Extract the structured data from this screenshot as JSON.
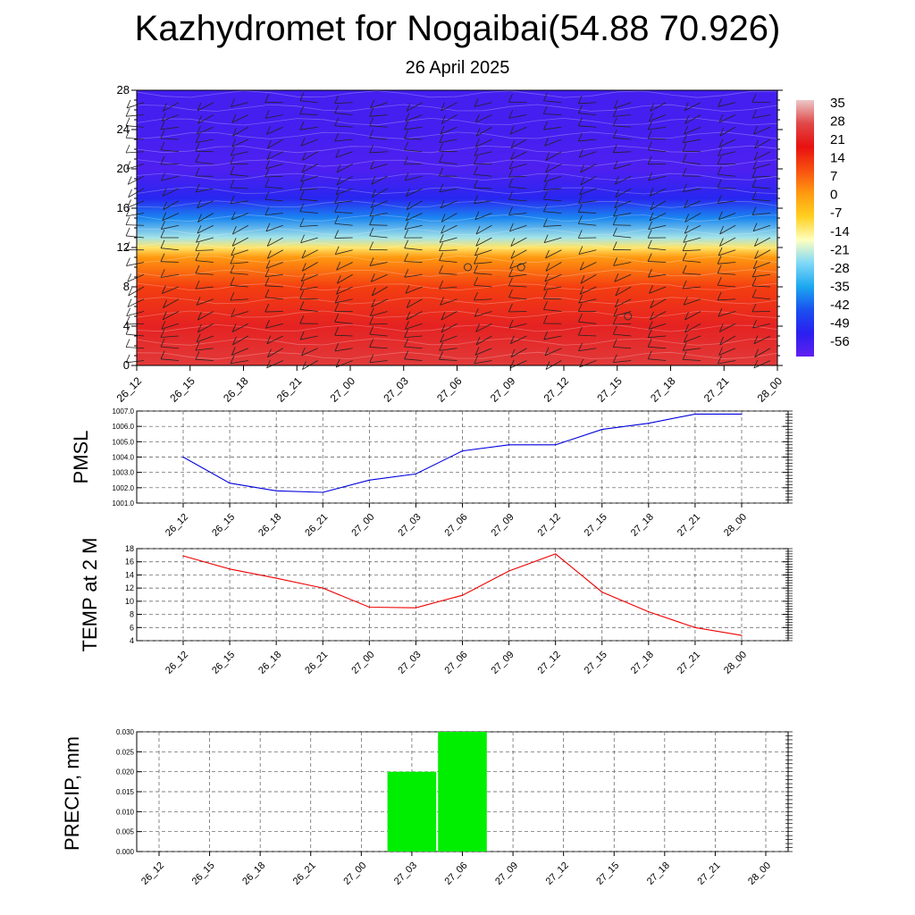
{
  "title": "Kazhydromet for Nogaibai(54.88 70.926)",
  "subtitle": "26 April 2025",
  "colors": {
    "pmsl_line": "#0000dd",
    "temp_line": "#ee0000",
    "precip_bar": "#00ee00",
    "grid": "#555555"
  },
  "chart_data": [
    {
      "type": "heatmap",
      "id": "cross-section",
      "x_ticks": [
        "26_12",
        "26_15",
        "26_18",
        "26_21",
        "27_00",
        "27_03",
        "27_06",
        "27_09",
        "27_12",
        "27_15",
        "27_18",
        "27_21",
        "28_00"
      ],
      "y_ticks": [
        "0",
        "4",
        "8",
        "12",
        "16",
        "20",
        "24",
        "28"
      ],
      "ylim": [
        0,
        28
      ],
      "colorbar_labels": [
        "35",
        "28",
        "21",
        "14",
        "7",
        "0",
        "-7",
        "-14",
        "-21",
        "-28",
        "-35",
        "-42",
        "-49",
        "-56"
      ],
      "colorbar_range": [
        -63,
        42
      ],
      "colorbar_colors": [
        "#6020f0",
        "#2a1ff0",
        "#1a50f0",
        "#1ca8f0",
        "#7fd8f8",
        "#ffffc0",
        "#ffd020",
        "#ff9a10",
        "#f85010",
        "#e81010",
        "#e04848",
        "#ecc8c8"
      ],
      "temperature_profile_by_level": [
        {
          "level": 0,
          "value": 30
        },
        {
          "level": 4,
          "value": 26
        },
        {
          "level": 8,
          "value": 16
        },
        {
          "level": 11,
          "value": 4
        },
        {
          "level": 12,
          "value": -10
        },
        {
          "level": 13,
          "value": -22
        },
        {
          "level": 15,
          "value": -38
        },
        {
          "level": 17,
          "value": -52
        },
        {
          "level": 20,
          "value": -60
        },
        {
          "level": 24,
          "value": -58
        },
        {
          "level": 28,
          "value": -58
        }
      ],
      "calm_markers": [
        {
          "time": "27_06",
          "level": 10
        },
        {
          "time": "27_09",
          "level": 10
        },
        {
          "time": "27_15",
          "level": 5
        }
      ],
      "wind_barbs": true
    },
    {
      "type": "line",
      "id": "pmsl",
      "ylabel": "PMSL",
      "categories": [
        "26_12",
        "26_15",
        "26_18",
        "26_21",
        "27_00",
        "27_03",
        "27_06",
        "27_09",
        "27_12",
        "27_15",
        "27_18",
        "27_21",
        "28_00"
      ],
      "values": [
        1004.0,
        1002.3,
        1001.8,
        1001.7,
        1002.5,
        1002.9,
        1004.4,
        1004.8,
        1004.8,
        1005.8,
        1006.2,
        1006.8,
        1006.8
      ],
      "ylim": [
        1001.0,
        1007.0
      ],
      "y_ticks": [
        "1001.0",
        "1002.0",
        "1003.0",
        "1004.0",
        "1005.0",
        "1006.0",
        "1007.0"
      ],
      "grid": true
    },
    {
      "type": "line",
      "id": "temp",
      "ylabel": "TEMP at 2 M",
      "categories": [
        "26_12",
        "26_15",
        "26_18",
        "26_21",
        "27_00",
        "27_03",
        "27_06",
        "27_09",
        "27_12",
        "27_15",
        "27_18",
        "27_21",
        "28_00"
      ],
      "values": [
        16.9,
        14.9,
        13.5,
        12.0,
        9.1,
        9.0,
        10.9,
        14.6,
        17.2,
        11.4,
        8.4,
        6.0,
        4.8
      ],
      "ylim": [
        4,
        18
      ],
      "y_ticks": [
        "4",
        "6",
        "8",
        "10",
        "12",
        "14",
        "16",
        "18"
      ],
      "grid": true
    },
    {
      "type": "bar",
      "id": "precip",
      "ylabel": "PRECIP, mm",
      "categories": [
        "26_12",
        "26_15",
        "26_18",
        "26_21",
        "27_00",
        "27_03",
        "27_06",
        "27_09",
        "27_12",
        "27_15",
        "27_18",
        "27_21",
        "28_00"
      ],
      "values": [
        0,
        0,
        0,
        0,
        0,
        0.02,
        0.03,
        0,
        0,
        0,
        0,
        0,
        0
      ],
      "ylim": [
        0,
        0.03
      ],
      "y_ticks": [
        "0.000",
        "0.005",
        "0.010",
        "0.015",
        "0.020",
        "0.025",
        "0.030"
      ],
      "grid": true
    }
  ]
}
